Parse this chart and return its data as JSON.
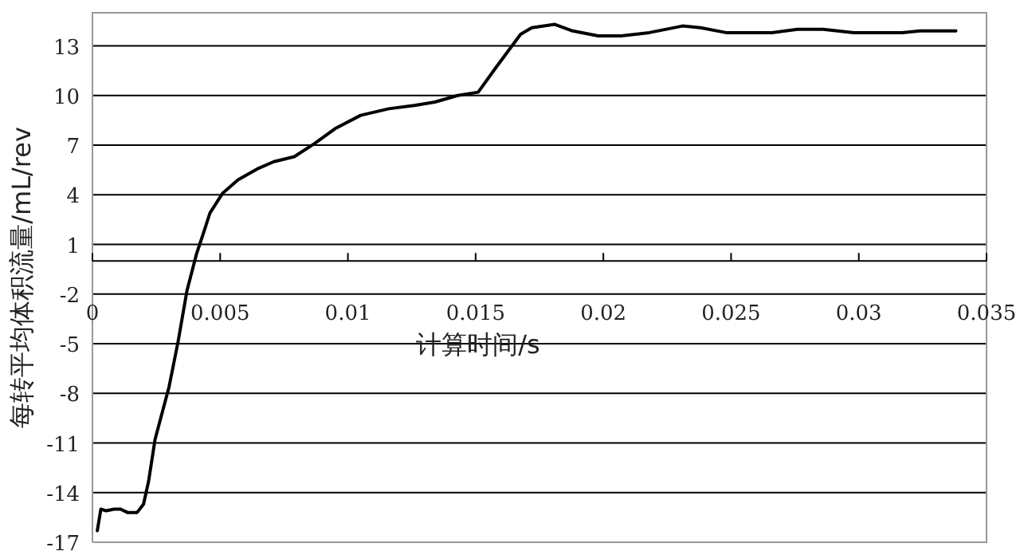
{
  "chart_data": {
    "type": "line",
    "xlabel": "计算时间/s",
    "ylabel": "每转平均体积流量/mL/rev",
    "xlim": [
      0,
      0.035
    ],
    "xticks": [
      0,
      0.005,
      0.01,
      0.015,
      0.02,
      0.025,
      0.03,
      0.035
    ],
    "ylim": [
      -17,
      15
    ],
    "yticks": [
      -17,
      -14,
      -11,
      -8,
      -5,
      -2,
      1,
      4,
      7,
      10,
      13
    ],
    "grid": "y",
    "marker": "none",
    "line_style": "solid",
    "series": [
      {
        "color": "#000000",
        "x": [
          0.00019,
          0.00033,
          0.00054,
          0.00085,
          0.0011,
          0.00137,
          0.00175,
          0.002,
          0.0022,
          0.00245,
          0.003,
          0.00335,
          0.0037,
          0.00407,
          0.00435,
          0.0046,
          0.0051,
          0.0057,
          0.0065,
          0.0071,
          0.0079,
          0.0087,
          0.0095,
          0.0105,
          0.0116,
          0.0126,
          0.0134,
          0.0143,
          0.0151,
          0.0158,
          0.01676,
          0.0172,
          0.0181,
          0.0188,
          0.0198,
          0.0207,
          0.0218,
          0.0231,
          0.0238,
          0.0248,
          0.0266,
          0.0276,
          0.0286,
          0.0298,
          0.0317,
          0.0324,
          0.0338
        ],
        "values": [
          -16.3,
          -15.0,
          -15.1,
          -15.0,
          -15.0,
          -15.2,
          -15.2,
          -14.7,
          -13.3,
          -10.8,
          -7.6,
          -4.9,
          -1.8,
          0.4,
          1.7,
          2.9,
          4.1,
          4.9,
          5.6,
          6.0,
          6.3,
          7.1,
          8.0,
          8.8,
          9.2,
          9.4,
          9.6,
          10.0,
          10.2,
          11.7,
          13.7,
          14.1,
          14.3,
          13.9,
          13.6,
          13.6,
          13.8,
          14.2,
          14.1,
          13.8,
          13.8,
          14.0,
          14.0,
          13.8,
          13.8,
          13.9,
          13.9
        ]
      }
    ]
  }
}
